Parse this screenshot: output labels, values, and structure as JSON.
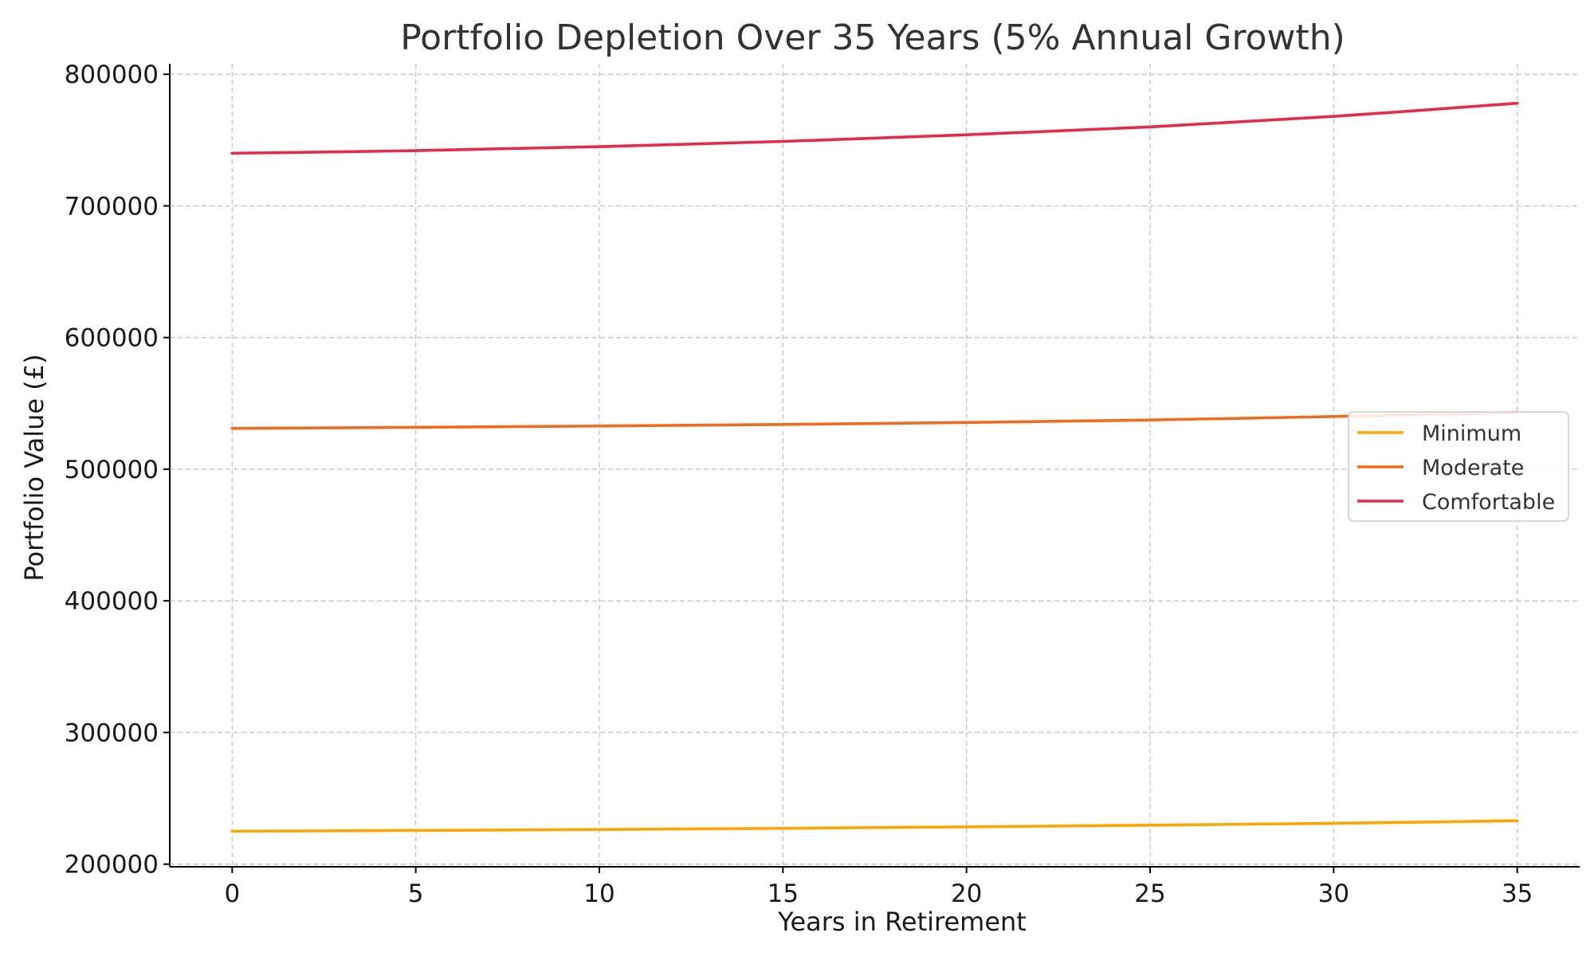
{
  "chart_data": {
    "type": "line",
    "title": "Portfolio Depletion Over 35 Years (5% Annual Growth)",
    "xlabel": "Years in Retirement",
    "ylabel": "Portfolio Value (£)",
    "xlim": [
      -1.7,
      36.7
    ],
    "ylim": [
      198000,
      808000
    ],
    "xticks": [
      0,
      5,
      10,
      15,
      20,
      25,
      30,
      35
    ],
    "yticks": [
      200000,
      300000,
      400000,
      500000,
      600000,
      700000,
      800000
    ],
    "grid": true,
    "legend_position": "center-right",
    "x": [
      0,
      5,
      10,
      15,
      20,
      25,
      30,
      35
    ],
    "series": [
      {
        "name": "Minimum",
        "color": "#FFA500",
        "values": [
          225000,
          225600,
          226300,
          227200,
          228300,
          229600,
          231000,
          233000
        ]
      },
      {
        "name": "Moderate",
        "color": "#F26B1D",
        "values": [
          531000,
          531800,
          532800,
          534000,
          535500,
          537400,
          540000,
          543000
        ]
      },
      {
        "name": "Comfortable",
        "color": "#E8294A",
        "values": [
          740000,
          742000,
          745000,
          749000,
          754000,
          760000,
          768000,
          778000
        ]
      }
    ]
  }
}
